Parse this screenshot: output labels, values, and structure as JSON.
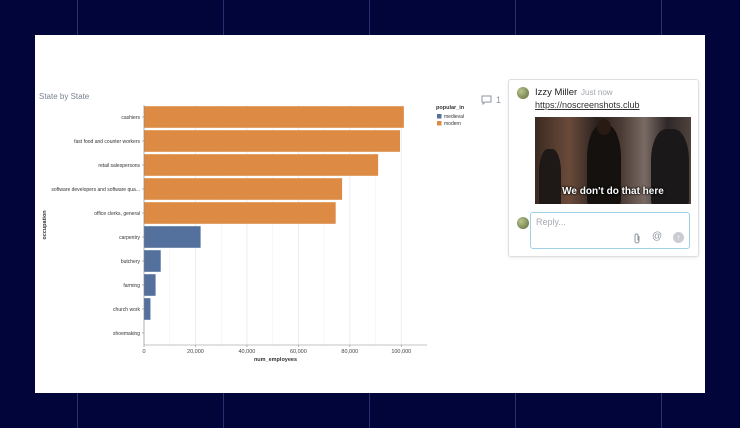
{
  "chart_data": {
    "type": "bar",
    "orientation": "horizontal",
    "title": "State by State",
    "xlabel": "num_employees",
    "ylabel": "occupation",
    "xlim": [
      0,
      110000
    ],
    "x_ticks": [
      "0",
      "20,000",
      "40,000",
      "60,000",
      "80,000",
      "100,000"
    ],
    "tick_values": [
      0,
      20000,
      40000,
      60000,
      80000,
      100000
    ],
    "legend_title": "popular_in",
    "legend_position": "right",
    "legend": [
      {
        "name": "medieval",
        "color": "#54709d"
      },
      {
        "name": "modern",
        "color": "#dd8a44"
      }
    ],
    "categories": [
      "cashiers",
      "fast food and counter workers",
      "retail salespersons",
      "software developers and software qua...",
      "office clerks, general",
      "carpentry",
      "butchery",
      "farming",
      "church work",
      "shoemaking"
    ],
    "values": [
      101000,
      99500,
      91000,
      77000,
      74500,
      22000,
      6500,
      4500,
      2500,
      0
    ],
    "groups": [
      "modern",
      "modern",
      "modern",
      "modern",
      "modern",
      "medieval",
      "medieval",
      "medieval",
      "medieval",
      "medieval"
    ]
  },
  "comments": {
    "count": "1",
    "author": "Izzy Miller",
    "time": "Just now",
    "link_text": "https://noscreenshots.club",
    "gif_caption": "We don't do that here",
    "reply_placeholder": "Reply..."
  },
  "icons": {
    "comment": "speech-bubble-icon",
    "attach": "paperclip-icon",
    "mention": "at-icon",
    "send": "arrow-up-icon"
  }
}
